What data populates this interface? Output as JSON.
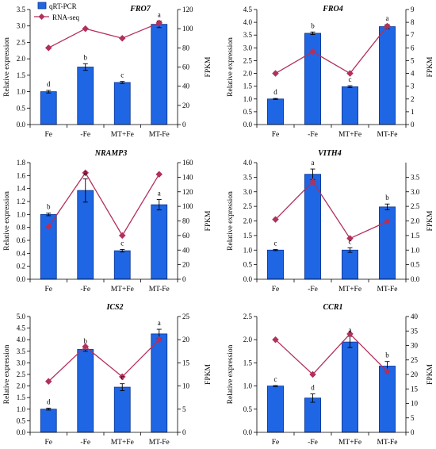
{
  "colors": {
    "bar": "#1f66e5",
    "bar_edge": "#0b348f",
    "line": "#b2305c",
    "axis": "#000000"
  },
  "chart_data": [
    {
      "type": "bar",
      "title": "FRO7",
      "categories": [
        "Fe",
        "-Fe",
        "MT+Fe",
        "MT-Fe"
      ],
      "ylabel": "Relative expression",
      "y2label": "FPKM",
      "ylim": [
        0,
        3.5
      ],
      "yticks": [
        "0.0",
        "0.5",
        "1.0",
        "1.5",
        "2.0",
        "2.5",
        "3.0",
        "3.5"
      ],
      "y2lim": [
        0,
        120
      ],
      "y2ticks": [
        "0",
        "20",
        "40",
        "60",
        "80",
        "100",
        "120"
      ],
      "legend": "top-left",
      "grid": false,
      "series": [
        {
          "name": "qRT-PCR",
          "type": "bar",
          "axis": "left",
          "values": [
            1.0,
            1.75,
            1.28,
            3.05
          ],
          "errors": [
            0.04,
            0.1,
            0.03,
            0.1
          ],
          "letters": [
            "d",
            "b",
            "c",
            "a"
          ]
        },
        {
          "name": "RNA-seq",
          "type": "line",
          "axis": "right",
          "values": [
            80,
            100,
            90,
            106
          ]
        }
      ]
    },
    {
      "type": "bar",
      "title": "FRO4",
      "categories": [
        "Fe",
        "-Fe",
        "MT+Fe",
        "MT-Fe"
      ],
      "ylabel": "Relative expression",
      "y2label": "FPKM",
      "ylim": [
        0,
        4.5
      ],
      "yticks": [
        "0.0",
        "0.5",
        "1.0",
        "1.5",
        "2.0",
        "2.5",
        "3.0",
        "3.5",
        "4.0",
        "4.5"
      ],
      "y2lim": [
        0,
        9
      ],
      "y2ticks": [
        "0",
        "1",
        "2",
        "3",
        "4",
        "5",
        "6",
        "7",
        "8",
        "9"
      ],
      "grid": false,
      "series": [
        {
          "type": "bar",
          "axis": "left",
          "values": [
            1.0,
            3.57,
            1.48,
            3.83
          ],
          "errors": [
            0.02,
            0.05,
            0.04,
            0.08
          ],
          "letters": [
            "d",
            "b",
            "c",
            "a"
          ]
        },
        {
          "type": "line",
          "axis": "right",
          "values": [
            4.0,
            5.7,
            4.0,
            7.7
          ]
        }
      ]
    },
    {
      "type": "bar",
      "title": "NRAMP3",
      "categories": [
        "Fe",
        "-Fe",
        "MT+Fe",
        "MT-Fe"
      ],
      "ylabel": "Relative expression",
      "y2label": "FPKM",
      "ylim": [
        0,
        1.8
      ],
      "yticks": [
        "0.0",
        "0.2",
        "0.4",
        "0.6",
        "0.8",
        "1.0",
        "1.2",
        "1.4",
        "1.6",
        "1.8"
      ],
      "y2lim": [
        0,
        160
      ],
      "y2ticks": [
        "0",
        "20",
        "40",
        "60",
        "80",
        "100",
        "120",
        "140",
        "160"
      ],
      "grid": false,
      "series": [
        {
          "type": "bar",
          "axis": "left",
          "values": [
            1.0,
            1.37,
            0.44,
            1.15
          ],
          "errors": [
            0.02,
            0.18,
            0.02,
            0.08
          ],
          "letters": [
            "b",
            "a",
            "c",
            "a"
          ]
        },
        {
          "type": "line",
          "axis": "right",
          "values": [
            72,
            146,
            60,
            144
          ]
        }
      ]
    },
    {
      "type": "bar",
      "title": "VITH4",
      "categories": [
        "Fe",
        "-Fe",
        "MT+Fe",
        "MT-Fe"
      ],
      "ylabel": "Relative expression",
      "y2label": "FPKM",
      "ylim": [
        0,
        4.0
      ],
      "yticks": [
        "0.0",
        "0.5",
        "1.0",
        "1.5",
        "2.0",
        "2.5",
        "3.0",
        "3.5",
        "4.0"
      ],
      "y2lim": [
        0,
        4.0
      ],
      "y2ticks": [
        "0.0",
        "0.5",
        "1.0",
        "1.5",
        "2.0",
        "2.5",
        "3.0",
        "3.5"
      ],
      "grid": false,
      "series": [
        {
          "type": "bar",
          "axis": "left",
          "values": [
            1.0,
            3.6,
            1.0,
            2.48
          ],
          "errors": [
            0.02,
            0.18,
            0.08,
            0.1
          ],
          "letters": [
            "c",
            "a",
            "c",
            "b"
          ]
        },
        {
          "type": "line",
          "axis": "right",
          "values": [
            2.05,
            3.35,
            1.4,
            1.98
          ]
        }
      ]
    },
    {
      "type": "bar",
      "title": "ICS2",
      "categories": [
        "Fe",
        "-Fe",
        "MT+Fe",
        "MT-Fe"
      ],
      "ylabel": "Relative expression",
      "y2label": "FPKM",
      "ylim": [
        0,
        5.0
      ],
      "yticks": [
        "0.0",
        "0.5",
        "1.0",
        "1.5",
        "2.0",
        "2.5",
        "3.0",
        "3.5",
        "4.0",
        "4.5",
        "5.0"
      ],
      "y2lim": [
        0,
        25
      ],
      "y2ticks": [
        "0",
        "5",
        "10",
        "15",
        "20",
        "25"
      ],
      "grid": false,
      "series": [
        {
          "type": "bar",
          "axis": "left",
          "values": [
            1.0,
            3.58,
            1.95,
            4.25
          ],
          "errors": [
            0.04,
            0.08,
            0.15,
            0.2
          ],
          "letters": [
            "d",
            "b",
            "c",
            "a"
          ]
        },
        {
          "type": "line",
          "axis": "right",
          "values": [
            11,
            18.5,
            12,
            20
          ]
        }
      ]
    },
    {
      "type": "bar",
      "title": "CCR1",
      "categories": [
        "Fe",
        "-Fe",
        "MT+Fe",
        "MT-Fe"
      ],
      "ylabel": "Relative expression",
      "y2label": "FPKM",
      "ylim": [
        0,
        2.5
      ],
      "yticks": [
        "0.0",
        "0.5",
        "1.0",
        "1.5",
        "2.0",
        "2.5"
      ],
      "y2lim": [
        0,
        40
      ],
      "y2ticks": [
        "0",
        "5",
        "10",
        "15",
        "20",
        "25",
        "30",
        "35",
        "40"
      ],
      "grid": false,
      "series": [
        {
          "type": "bar",
          "axis": "left",
          "values": [
            1.0,
            0.74,
            1.95,
            1.43
          ],
          "errors": [
            0.01,
            0.09,
            0.12,
            0.1
          ],
          "letters": [
            "c",
            "d",
            "a",
            "b"
          ]
        },
        {
          "type": "line",
          "axis": "right",
          "values": [
            32,
            20,
            34,
            21
          ]
        }
      ]
    }
  ]
}
